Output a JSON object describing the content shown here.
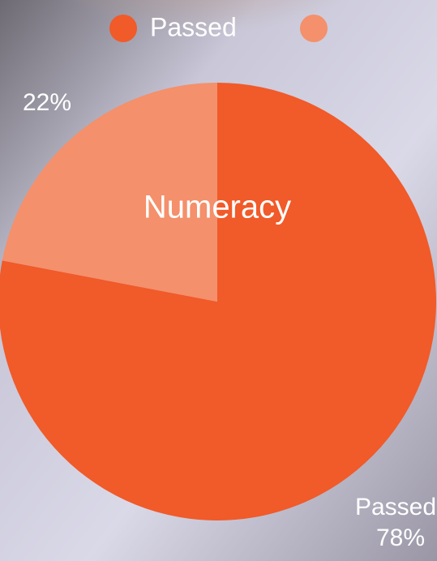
{
  "chart_data": {
    "type": "pie",
    "title": "Numeracy",
    "categories": [
      "Passed",
      null
    ],
    "values": [
      78,
      22
    ],
    "value_labels": [
      "78%",
      "22%"
    ],
    "colors": [
      "#f15a29",
      "#f4906b"
    ]
  }
}
